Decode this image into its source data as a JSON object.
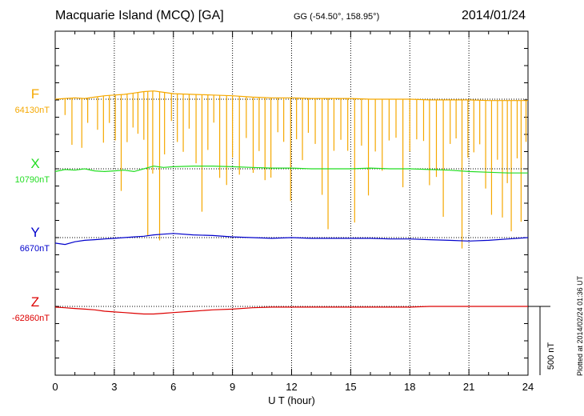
{
  "header": {
    "title": "Macquarie Island (MCQ)  [GA]",
    "coords": "GG (-54.50°, 158.95°)",
    "date": "2014/01/24"
  },
  "footer": {
    "plotted": "Plotted at 2014/02/24 01:36 UT",
    "scale_label": "500 nT"
  },
  "chart_data": {
    "type": "line",
    "title": "Macquarie Island (MCQ)  [GA]",
    "xlabel": "U T (hour)",
    "ylabel": "",
    "xlim": [
      0,
      24
    ],
    "xticks": [
      0,
      3,
      6,
      9,
      12,
      15,
      18,
      21,
      24
    ],
    "xtick_labels": [
      "0",
      "3",
      "6",
      "9",
      "12",
      "15",
      "18",
      "21",
      "24"
    ],
    "scale_bar_nT": 500,
    "series": [
      {
        "name": "F",
        "baseline_label": "64130nT",
        "baseline_nT": 64130,
        "color": "#f5a800",
        "x": [
          0,
          0.5,
          1,
          1.5,
          2,
          2.5,
          3,
          3.5,
          4,
          4.5,
          5,
          5.5,
          6,
          7,
          8,
          9,
          10,
          11,
          12,
          13,
          14,
          15,
          16,
          17,
          18,
          19,
          20,
          21,
          22,
          23,
          24
        ],
        "offset_nT": [
          0,
          5,
          10,
          5,
          15,
          25,
          30,
          35,
          45,
          55,
          60,
          50,
          40,
          35,
          30,
          25,
          15,
          10,
          10,
          5,
          5,
          5,
          0,
          0,
          0,
          -5,
          -5,
          -5,
          -10,
          -10,
          -10
        ],
        "spikes": [
          {
            "t": 0.5,
            "depth_nT": 120
          },
          {
            "t": 0.85,
            "depth_nT": 340
          },
          {
            "t": 1.35,
            "depth_nT": 360
          },
          {
            "t": 1.65,
            "depth_nT": 180
          },
          {
            "t": 2.15,
            "depth_nT": 240
          },
          {
            "t": 2.45,
            "depth_nT": 340
          },
          {
            "t": 2.75,
            "depth_nT": 200
          },
          {
            "t": 3.05,
            "depth_nT": 330
          },
          {
            "t": 3.35,
            "depth_nT": 700
          },
          {
            "t": 3.65,
            "depth_nT": 350
          },
          {
            "t": 3.95,
            "depth_nT": 250
          },
          {
            "t": 4.2,
            "depth_nT": 300
          },
          {
            "t": 4.5,
            "depth_nT": 350
          },
          {
            "t": 4.7,
            "depth_nT": 1050
          },
          {
            "t": 4.95,
            "depth_nT": 600
          },
          {
            "t": 5.3,
            "depth_nT": 1080
          },
          {
            "t": 5.55,
            "depth_nT": 450
          },
          {
            "t": 5.9,
            "depth_nT": 200
          },
          {
            "t": 6.2,
            "depth_nT": 350
          },
          {
            "t": 6.5,
            "depth_nT": 420
          },
          {
            "t": 6.8,
            "depth_nT": 250
          },
          {
            "t": 7.15,
            "depth_nT": 500
          },
          {
            "t": 7.45,
            "depth_nT": 850
          },
          {
            "t": 7.75,
            "depth_nT": 400
          },
          {
            "t": 8.05,
            "depth_nT": 200
          },
          {
            "t": 8.35,
            "depth_nT": 600
          },
          {
            "t": 8.7,
            "depth_nT": 650
          },
          {
            "t": 9.0,
            "depth_nT": 450
          },
          {
            "t": 9.35,
            "depth_nT": 570
          },
          {
            "t": 9.7,
            "depth_nT": 300
          },
          {
            "t": 10.05,
            "depth_nT": 550
          },
          {
            "t": 10.35,
            "depth_nT": 390
          },
          {
            "t": 10.65,
            "depth_nT": 600
          },
          {
            "t": 10.95,
            "depth_nT": 580
          },
          {
            "t": 11.3,
            "depth_nT": 250
          },
          {
            "t": 11.6,
            "depth_nT": 320
          },
          {
            "t": 11.95,
            "depth_nT": 750
          },
          {
            "t": 12.25,
            "depth_nT": 300
          },
          {
            "t": 12.55,
            "depth_nT": 450
          },
          {
            "t": 12.85,
            "depth_nT": 250
          },
          {
            "t": 13.2,
            "depth_nT": 330
          },
          {
            "t": 13.55,
            "depth_nT": 700
          },
          {
            "t": 13.85,
            "depth_nT": 950
          },
          {
            "t": 14.15,
            "depth_nT": 380
          },
          {
            "t": 14.5,
            "depth_nT": 300
          },
          {
            "t": 14.85,
            "depth_nT": 380
          },
          {
            "t": 15.2,
            "depth_nT": 900
          },
          {
            "t": 15.55,
            "depth_nT": 340
          },
          {
            "t": 15.9,
            "depth_nT": 700
          },
          {
            "t": 16.25,
            "depth_nT": 380
          },
          {
            "t": 16.6,
            "depth_nT": 520
          },
          {
            "t": 16.95,
            "depth_nT": 300
          },
          {
            "t": 17.3,
            "depth_nT": 280
          },
          {
            "t": 17.65,
            "depth_nT": 640
          },
          {
            "t": 18.0,
            "depth_nT": 380
          },
          {
            "t": 18.35,
            "depth_nT": 290
          },
          {
            "t": 18.7,
            "depth_nT": 300
          },
          {
            "t": 19.0,
            "depth_nT": 620
          },
          {
            "t": 19.35,
            "depth_nT": 560
          },
          {
            "t": 19.7,
            "depth_nT": 850
          },
          {
            "t": 20.05,
            "depth_nT": 320
          },
          {
            "t": 20.35,
            "depth_nT": 280
          },
          {
            "t": 20.65,
            "depth_nT": 1080
          },
          {
            "t": 20.95,
            "depth_nT": 420
          },
          {
            "t": 21.25,
            "depth_nT": 380
          },
          {
            "t": 21.55,
            "depth_nT": 320
          },
          {
            "t": 21.85,
            "depth_nT": 640
          },
          {
            "t": 22.15,
            "depth_nT": 830
          },
          {
            "t": 22.45,
            "depth_nT": 430
          },
          {
            "t": 22.7,
            "depth_nT": 850
          },
          {
            "t": 22.95,
            "depth_nT": 600
          },
          {
            "t": 23.15,
            "depth_nT": 950
          },
          {
            "t": 23.45,
            "depth_nT": 420
          },
          {
            "t": 23.65,
            "depth_nT": 880
          },
          {
            "t": 23.9,
            "depth_nT": 300
          }
        ]
      },
      {
        "name": "X",
        "baseline_label": "10790nT",
        "baseline_nT": 10790,
        "color": "#22dd22",
        "x": [
          0,
          0.5,
          1,
          1.5,
          2,
          2.5,
          3,
          3.5,
          4,
          4.5,
          5,
          5.5,
          6,
          7,
          8,
          9,
          10,
          11,
          12,
          13,
          14,
          15,
          16,
          17,
          18,
          19,
          20,
          21,
          22,
          23,
          24
        ],
        "offset_nT": [
          -20,
          -5,
          -10,
          0,
          -15,
          -20,
          -15,
          -10,
          -20,
          0,
          20,
          10,
          15,
          20,
          20,
          15,
          10,
          5,
          5,
          0,
          0,
          0,
          5,
          0,
          0,
          -5,
          -10,
          -20,
          -25,
          -30,
          -30
        ],
        "spikes": []
      },
      {
        "name": "Y",
        "baseline_label": "6670nT",
        "baseline_nT": 6670,
        "color": "#0000cc",
        "x": [
          0,
          0.5,
          1,
          1.5,
          2,
          2.5,
          3,
          3.5,
          4,
          4.5,
          5,
          5.5,
          6,
          7,
          8,
          9,
          10,
          11,
          12,
          13,
          14,
          15,
          16,
          17,
          18,
          19,
          20,
          21,
          22,
          23,
          24
        ],
        "offset_nT": [
          -40,
          -50,
          -30,
          -20,
          -15,
          -10,
          -5,
          0,
          5,
          10,
          20,
          25,
          30,
          20,
          15,
          5,
          0,
          -5,
          0,
          -5,
          -5,
          -5,
          -5,
          -10,
          -10,
          -15,
          -20,
          -25,
          -20,
          -10,
          0
        ],
        "spikes": []
      },
      {
        "name": "Z",
        "baseline_label": "-62860nT",
        "baseline_nT": -62860,
        "color": "#dd0000",
        "x": [
          0,
          0.5,
          1,
          1.5,
          2,
          2.5,
          3,
          3.5,
          4,
          4.5,
          5,
          5.5,
          6,
          7,
          8,
          9,
          10,
          11,
          12,
          13,
          14,
          15,
          16,
          17,
          18,
          19,
          20,
          21,
          22,
          23,
          24
        ],
        "offset_nT": [
          -5,
          -10,
          -15,
          -20,
          -25,
          -35,
          -40,
          -45,
          -50,
          -55,
          -55,
          -50,
          -45,
          -35,
          -25,
          -20,
          -10,
          -5,
          -5,
          -5,
          -5,
          -5,
          -5,
          -5,
          -5,
          0,
          0,
          0,
          0,
          0,
          0
        ],
        "spikes": []
      }
    ]
  }
}
